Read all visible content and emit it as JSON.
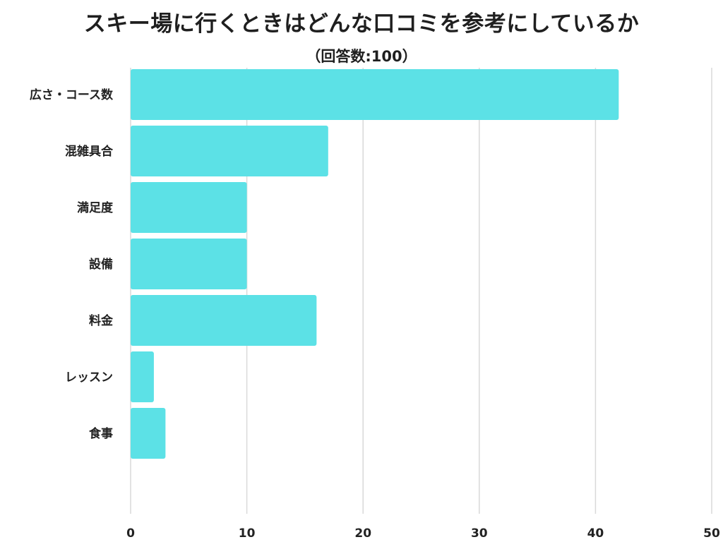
{
  "chart_data": {
    "type": "bar",
    "orientation": "horizontal",
    "title": "スキー場に行くときはどんな口コミを参考にしているか",
    "subtitle": "（回答数:100）",
    "categories": [
      "広さ・コース数",
      "混雑具合",
      "満足度",
      "設備",
      "料金",
      "レッスン",
      "食事"
    ],
    "values": [
      42,
      17,
      10,
      10,
      16,
      2,
      3
    ],
    "xlim": [
      0,
      50
    ],
    "xticks": [
      "0",
      "10",
      "20",
      "30",
      "40",
      "50"
    ],
    "grid": "vertical",
    "bar_color": "#5ce1e6",
    "grid_color": "#d9d9d9"
  }
}
